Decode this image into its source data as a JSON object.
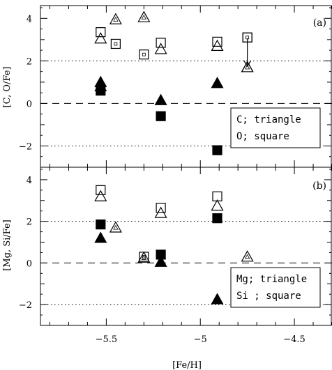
{
  "chart_data": [
    {
      "type": "scatter",
      "panel_label": "(a)",
      "ylabel": "[C, O/Fe]",
      "xlabel": "",
      "xlim": [
        -5.85,
        -4.3
      ],
      "ylim": [
        -3,
        4.6
      ],
      "xticks": [
        -5.5,
        -5,
        -4.5
      ],
      "yticks": [
        -2,
        0,
        2,
        4
      ],
      "xtick_labels": [
        "",
        "",
        ""
      ],
      "ytick_labels": [
        "−2",
        "0",
        "2",
        "4"
      ],
      "reference_lines": [
        {
          "y": 2,
          "style": "dotted"
        },
        {
          "y": 0,
          "style": "dashed"
        },
        {
          "y": -2,
          "style": "dotted"
        }
      ],
      "legend": {
        "position": "bottom-right",
        "lines": [
          "C; triangle",
          "O; square"
        ]
      },
      "series": [
        {
          "marker": "triangle",
          "style": "open",
          "points": [
            [
              -5.53,
              3.05
            ],
            [
              -5.21,
              2.55
            ],
            [
              -4.91,
              2.7
            ],
            [
              -4.75,
              1.7
            ]
          ]
        },
        {
          "marker": "square",
          "style": "open",
          "points": [
            [
              -5.53,
              3.35
            ],
            [
              -5.21,
              2.85
            ],
            [
              -4.91,
              2.9
            ],
            [
              -4.75,
              3.1
            ]
          ]
        },
        {
          "marker": "triangle",
          "style": "filled",
          "points": [
            [
              -5.53,
              1.0
            ],
            [
              -5.53,
              0.8
            ],
            [
              -5.21,
              0.15
            ],
            [
              -4.91,
              0.95
            ]
          ]
        },
        {
          "marker": "square",
          "style": "filled",
          "points": [
            [
              -5.53,
              0.6
            ],
            [
              -5.21,
              -0.6
            ],
            [
              -4.91,
              -2.2
            ]
          ]
        },
        {
          "marker": "triangle",
          "style": "open-with-dot",
          "points": [
            [
              -5.45,
              3.95
            ],
            [
              -5.3,
              4.05
            ],
            [
              -4.75,
              1.7
            ]
          ]
        },
        {
          "marker": "square",
          "style": "open-with-dot",
          "points": [
            [
              -5.45,
              2.8
            ],
            [
              -5.3,
              2.3
            ],
            [
              -4.75,
              3.1
            ]
          ]
        }
      ],
      "annotations": [
        {
          "type": "upper-limit-arrow",
          "x": -4.75,
          "from_y": 3.05,
          "to_y": 1.75
        }
      ]
    },
    {
      "type": "scatter",
      "panel_label": "(b)",
      "ylabel": "[Mg, Si/Fe]",
      "xlabel": "[Fe/H]",
      "xlim": [
        -5.85,
        -4.3
      ],
      "ylim": [
        -3,
        4.6
      ],
      "xticks": [
        -5.5,
        -5,
        -4.5
      ],
      "yticks": [
        -2,
        0,
        2,
        4
      ],
      "xtick_labels": [
        "−5.5",
        "−5",
        "−4.5"
      ],
      "ytick_labels": [
        "−2",
        "0",
        "2",
        "4"
      ],
      "reference_lines": [
        {
          "y": 2,
          "style": "dotted"
        },
        {
          "y": 0,
          "style": "dashed"
        },
        {
          "y": -2,
          "style": "dotted"
        }
      ],
      "legend": {
        "position": "bottom-right",
        "lines": [
          "Mg; triangle",
          "Si ; square"
        ]
      },
      "series": [
        {
          "marker": "triangle",
          "style": "open",
          "points": [
            [
              -5.53,
              3.2
            ],
            [
              -5.21,
              2.4
            ],
            [
              -4.91,
              2.75
            ]
          ]
        },
        {
          "marker": "square",
          "style": "open",
          "points": [
            [
              -5.53,
              3.5
            ],
            [
              -5.21,
              2.65
            ],
            [
              -4.91,
              3.2
            ]
          ]
        },
        {
          "marker": "triangle",
          "style": "filled",
          "points": [
            [
              -5.53,
              1.2
            ],
            [
              -5.21,
              0.05
            ],
            [
              -4.91,
              -1.75
            ]
          ]
        },
        {
          "marker": "square",
          "style": "filled",
          "points": [
            [
              -5.53,
              1.85
            ],
            [
              -5.21,
              0.4
            ],
            [
              -4.91,
              2.15
            ]
          ]
        },
        {
          "marker": "triangle",
          "style": "open-with-dot",
          "points": [
            [
              -5.45,
              1.7
            ],
            [
              -5.3,
              0.25
            ],
            [
              -4.75,
              0.3
            ]
          ]
        },
        {
          "marker": "square",
          "style": "open-with-dot",
          "points": [
            [
              -5.3,
              0.3
            ]
          ]
        }
      ],
      "annotations": []
    }
  ]
}
